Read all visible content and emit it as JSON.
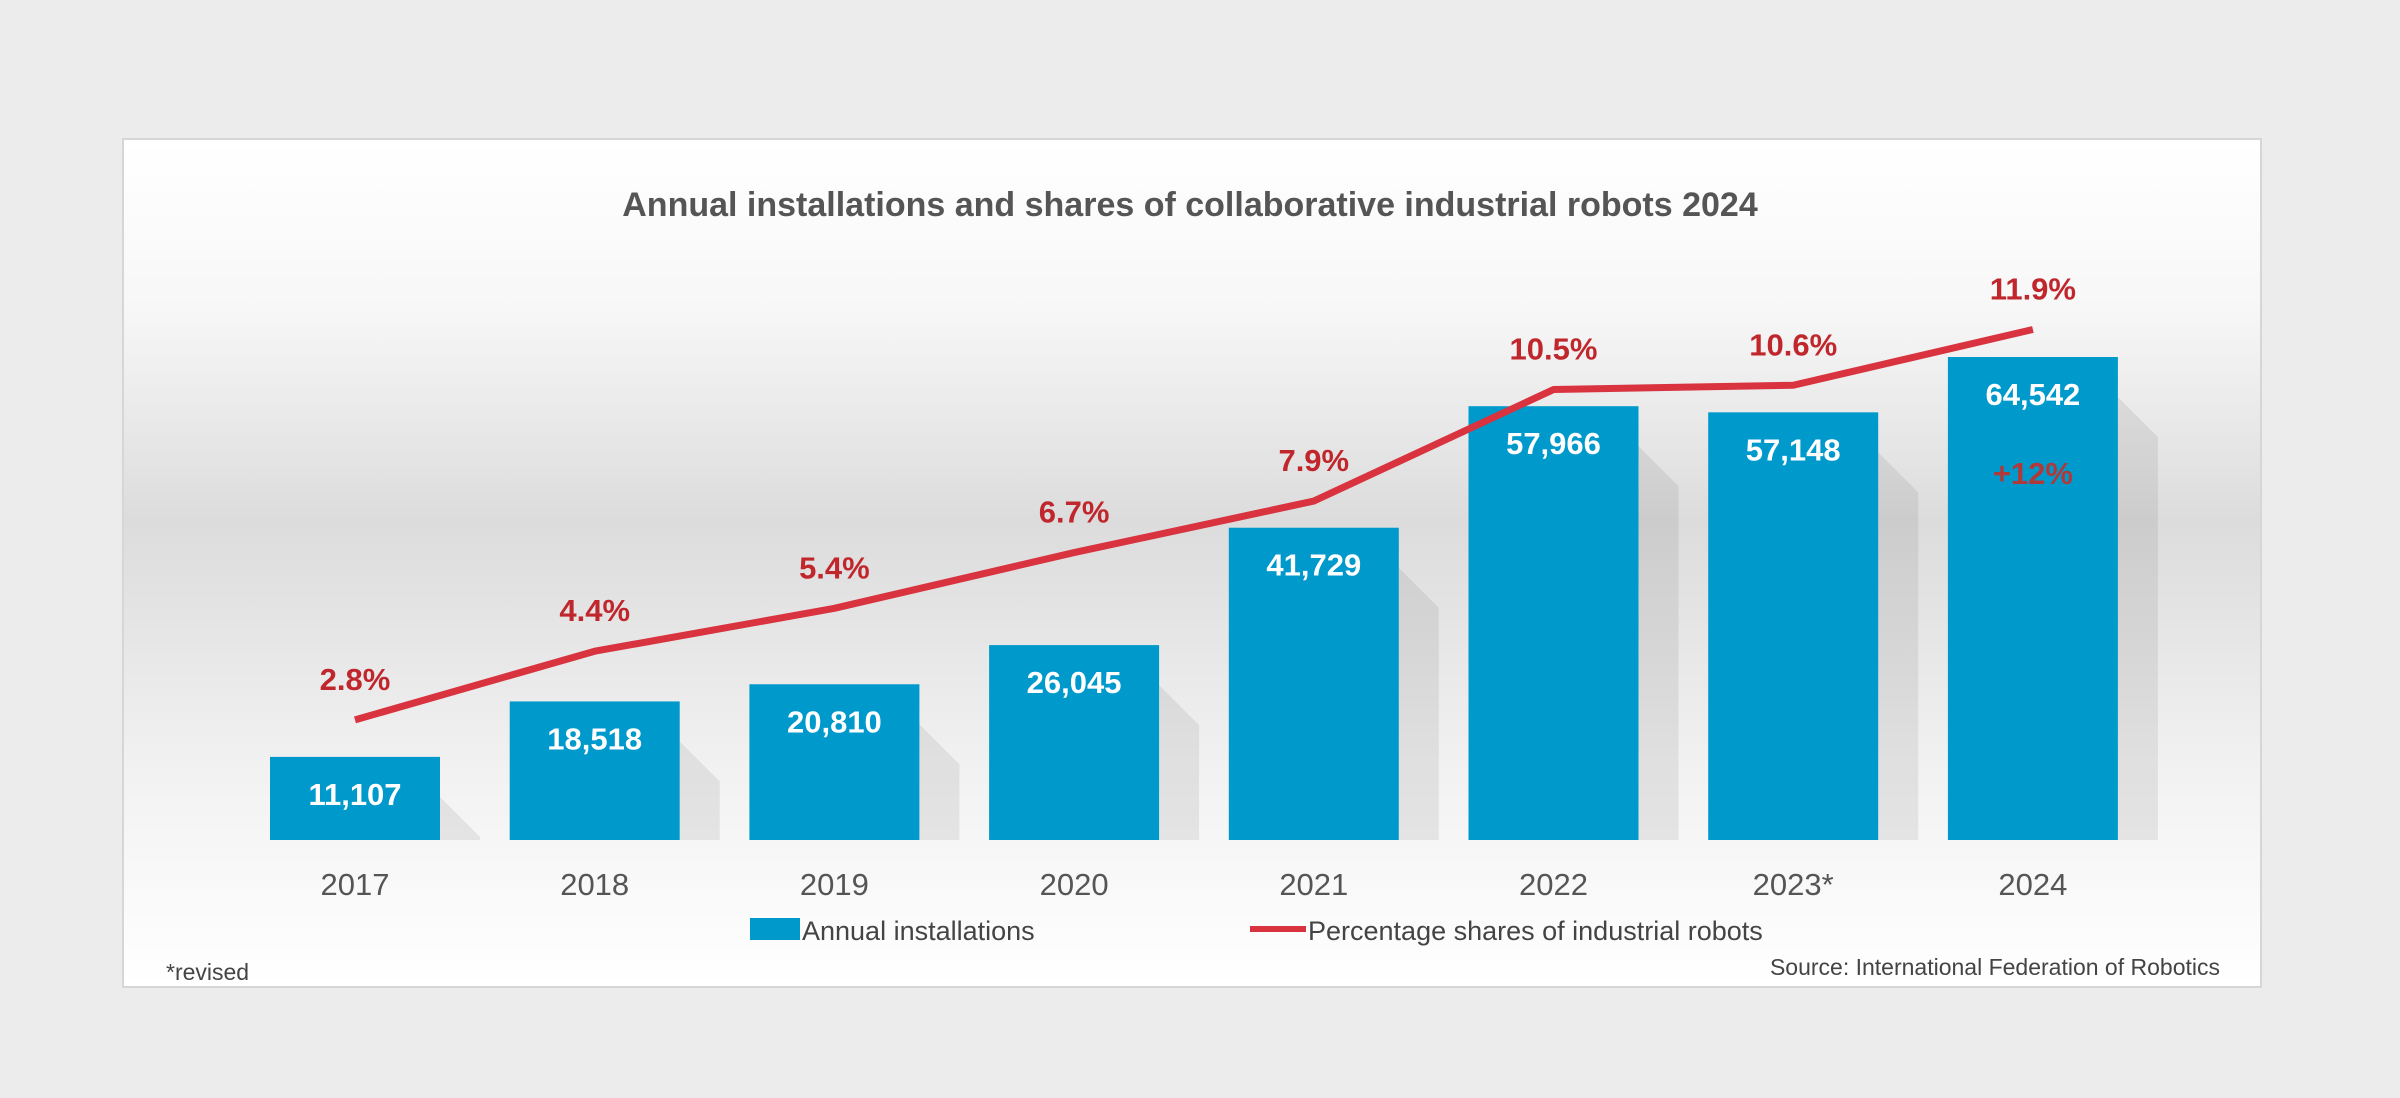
{
  "chart_data": {
    "type": "bar+line",
    "title": "Annual installations and shares of collaborative industrial robots 2024",
    "categories": [
      "2017",
      "2018",
      "2019",
      "2020",
      "2021",
      "2022",
      "2023*",
      "2024"
    ],
    "series": [
      {
        "name": "Annual installations",
        "type": "bar",
        "color": "#0099cc",
        "values": [
          11107,
          18518,
          20810,
          26045,
          41729,
          57966,
          57148,
          64542
        ],
        "labels": [
          "11,107",
          "18,518",
          "20,810",
          "26,045",
          "41,729",
          "57,966",
          "57,148",
          "64,542"
        ]
      },
      {
        "name": "Percentage shares of industrial robots",
        "type": "line",
        "color": "#d9333f",
        "values": [
          2.8,
          4.4,
          5.4,
          6.7,
          7.9,
          10.5,
          10.6,
          11.9
        ],
        "labels": [
          "2.8%",
          "4.4%",
          "5.4%",
          "6.7%",
          "7.9%",
          "10.5%",
          "10.6%",
          "11.9%"
        ]
      }
    ],
    "annotations": [
      {
        "category": "2024",
        "text": "+12%"
      }
    ],
    "footnote": "*revised",
    "source": "Source: International Federation of Robotics",
    "legend": "bottom",
    "grid": false
  }
}
